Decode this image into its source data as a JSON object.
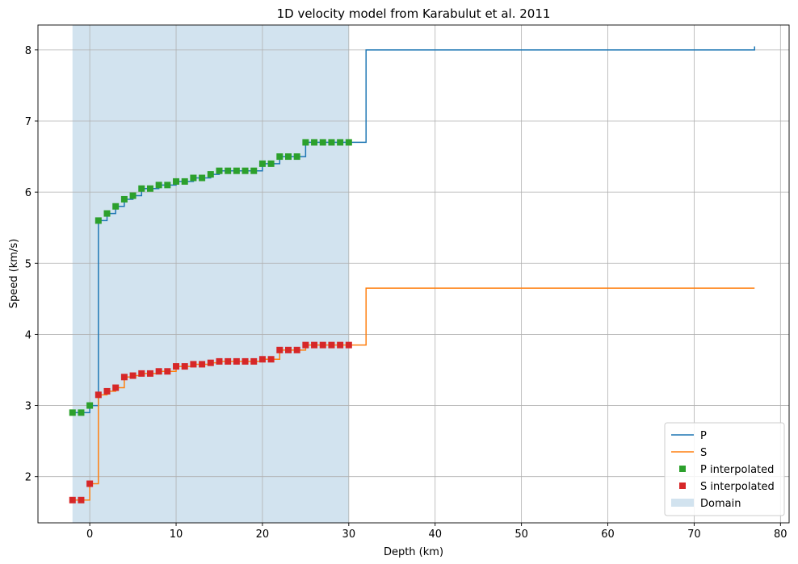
{
  "chart_data": {
    "type": "line",
    "title": "1D velocity model from Karabulut et al. 2011",
    "xlabel": "Depth (km)",
    "ylabel": "Speed (km/s)",
    "xlim": [
      -6,
      81
    ],
    "ylim": [
      1.35,
      8.35
    ],
    "xticks": [
      0,
      10,
      20,
      30,
      40,
      50,
      60,
      70,
      80
    ],
    "yticks": [
      2,
      3,
      4,
      5,
      6,
      7,
      8
    ],
    "grid": true,
    "legend_position": "lower-right",
    "domain": {
      "name": "Domain",
      "x0": -2,
      "x1": 30,
      "color": "#d2e3ef"
    },
    "series": [
      {
        "name": "P",
        "kind": "step",
        "color": "#1f77b4",
        "x": [
          -2,
          0,
          1,
          2,
          3,
          4,
          5,
          6,
          8,
          10,
          12,
          14,
          15,
          20,
          22,
          25,
          32,
          77,
          77
        ],
        "y": [
          2.9,
          3.0,
          5.6,
          5.7,
          5.8,
          5.9,
          5.95,
          6.05,
          6.1,
          6.15,
          6.2,
          6.25,
          6.3,
          6.4,
          6.5,
          6.7,
          8.0,
          8.0,
          8.05
        ]
      },
      {
        "name": "S",
        "kind": "step",
        "color": "#ff7f0e",
        "x": [
          -2,
          0,
          1,
          2,
          3,
          4,
          5,
          6,
          8,
          10,
          12,
          14,
          15,
          20,
          22,
          25,
          32,
          77
        ],
        "y": [
          1.67,
          1.9,
          3.15,
          3.2,
          3.25,
          3.4,
          3.42,
          3.45,
          3.48,
          3.55,
          3.58,
          3.6,
          3.62,
          3.65,
          3.78,
          3.85,
          4.65,
          4.65
        ]
      },
      {
        "name": "P interpolated",
        "kind": "marker",
        "color": "#2ca02c",
        "x": [
          -2,
          -1,
          0,
          1,
          2,
          3,
          4,
          5,
          6,
          7,
          8,
          9,
          10,
          11,
          12,
          13,
          14,
          15,
          16,
          17,
          18,
          19,
          20,
          21,
          22,
          23,
          24,
          25,
          26,
          27,
          28,
          29,
          30
        ],
        "y": [
          2.9,
          2.9,
          3.0,
          5.6,
          5.7,
          5.8,
          5.9,
          5.95,
          6.05,
          6.05,
          6.1,
          6.1,
          6.15,
          6.15,
          6.2,
          6.2,
          6.25,
          6.3,
          6.3,
          6.3,
          6.3,
          6.3,
          6.4,
          6.4,
          6.5,
          6.5,
          6.5,
          6.7,
          6.7,
          6.7,
          6.7,
          6.7,
          6.7
        ]
      },
      {
        "name": "S interpolated",
        "kind": "marker",
        "color": "#d62728",
        "x": [
          -2,
          -1,
          0,
          1,
          2,
          3,
          4,
          5,
          6,
          7,
          8,
          9,
          10,
          11,
          12,
          13,
          14,
          15,
          16,
          17,
          18,
          19,
          20,
          21,
          22,
          23,
          24,
          25,
          26,
          27,
          28,
          29,
          30
        ],
        "y": [
          1.67,
          1.67,
          1.9,
          3.15,
          3.2,
          3.25,
          3.4,
          3.42,
          3.45,
          3.45,
          3.48,
          3.48,
          3.55,
          3.55,
          3.58,
          3.58,
          3.6,
          3.62,
          3.62,
          3.62,
          3.62,
          3.62,
          3.65,
          3.65,
          3.78,
          3.78,
          3.78,
          3.85,
          3.85,
          3.85,
          3.85,
          3.85,
          3.85
        ]
      }
    ]
  }
}
